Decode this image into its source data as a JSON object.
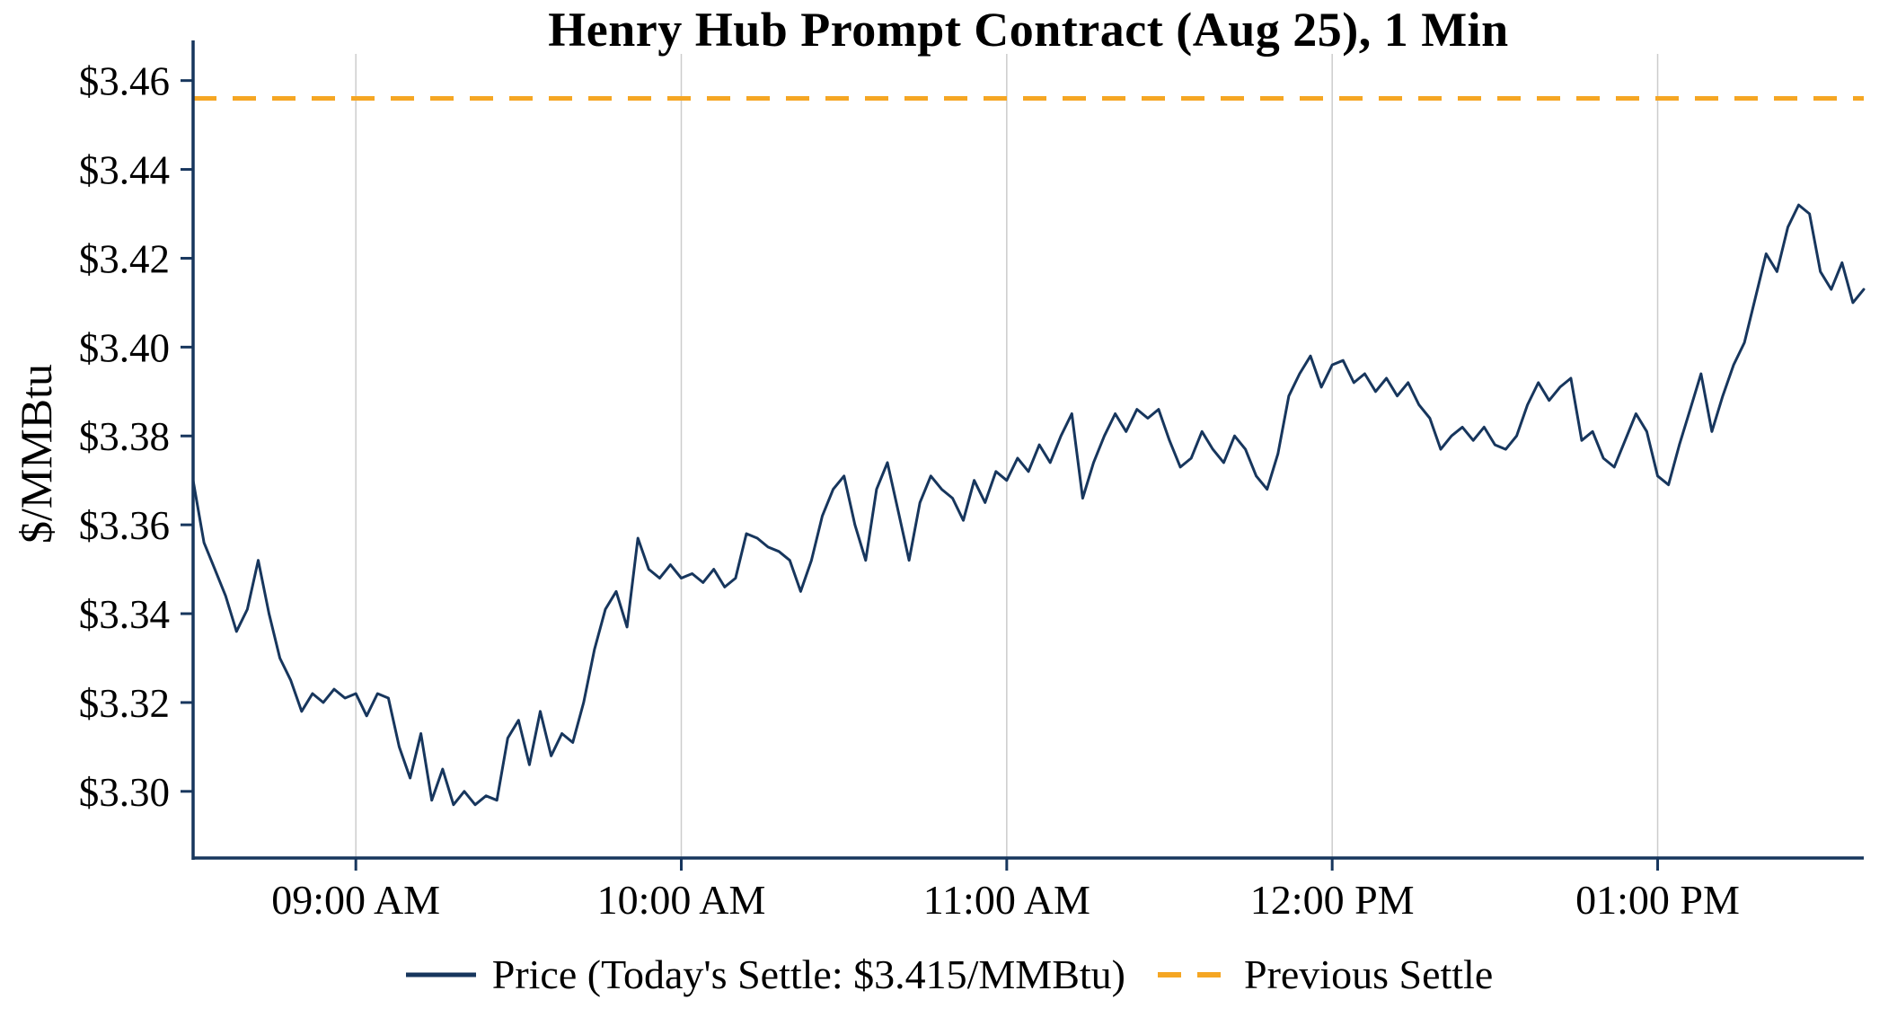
{
  "page": {
    "background": "#ffffff"
  },
  "chart_data": {
    "type": "line",
    "title": "Henry Hub Prompt Contract (Aug 25), 1 Min",
    "xlabel": "",
    "ylabel": "$/MMBtu",
    "ylim": [
      3.285,
      3.466
    ],
    "grid": "vertical-only",
    "legend_position": "bottom-center",
    "x_start_label": "08:30 AM",
    "x_interval_min": 2,
    "x_total_min": 308,
    "x_ticks": [
      {
        "minutes_from_start": 30,
        "label": "09:00 AM"
      },
      {
        "minutes_from_start": 90,
        "label": "10:00 AM"
      },
      {
        "minutes_from_start": 150,
        "label": "11:00 AM"
      },
      {
        "minutes_from_start": 210,
        "label": "12:00 PM"
      },
      {
        "minutes_from_start": 270,
        "label": "01:00 PM"
      }
    ],
    "y_ticks": [
      {
        "value": 3.3,
        "label": "$3.30"
      },
      {
        "value": 3.32,
        "label": "$3.32"
      },
      {
        "value": 3.34,
        "label": "$3.34"
      },
      {
        "value": 3.36,
        "label": "$3.36"
      },
      {
        "value": 3.38,
        "label": "$3.38"
      },
      {
        "value": 3.4,
        "label": "$3.40"
      },
      {
        "value": 3.42,
        "label": "$3.42"
      },
      {
        "value": 3.44,
        "label": "$3.44"
      },
      {
        "value": 3.46,
        "label": "$3.46"
      }
    ],
    "colors": {
      "price_line": "#17365d",
      "previous_settle_line": "#f5a623",
      "axis": "#17365d",
      "gridline": "#cccccc",
      "text": "#000000"
    },
    "todays_settle": 3.415,
    "series": [
      {
        "name": "Price (Today's Settle: $3.415/MMBtu)",
        "type": "line",
        "color": "#17365d",
        "values": [
          3.37,
          3.356,
          3.35,
          3.344,
          3.336,
          3.341,
          3.352,
          3.34,
          3.33,
          3.325,
          3.318,
          3.322,
          3.32,
          3.323,
          3.321,
          3.322,
          3.317,
          3.322,
          3.321,
          3.31,
          3.303,
          3.313,
          3.298,
          3.305,
          3.297,
          3.3,
          3.297,
          3.299,
          3.298,
          3.312,
          3.316,
          3.306,
          3.318,
          3.308,
          3.313,
          3.311,
          3.32,
          3.332,
          3.341,
          3.345,
          3.337,
          3.357,
          3.35,
          3.348,
          3.351,
          3.348,
          3.349,
          3.347,
          3.35,
          3.346,
          3.348,
          3.358,
          3.357,
          3.355,
          3.354,
          3.352,
          3.345,
          3.352,
          3.362,
          3.368,
          3.371,
          3.36,
          3.352,
          3.368,
          3.374,
          3.363,
          3.352,
          3.365,
          3.371,
          3.368,
          3.366,
          3.361,
          3.37,
          3.365,
          3.372,
          3.37,
          3.375,
          3.372,
          3.378,
          3.374,
          3.38,
          3.385,
          3.366,
          3.374,
          3.38,
          3.385,
          3.381,
          3.386,
          3.384,
          3.386,
          3.379,
          3.373,
          3.375,
          3.381,
          3.377,
          3.374,
          3.38,
          3.377,
          3.371,
          3.368,
          3.376,
          3.389,
          3.394,
          3.398,
          3.391,
          3.396,
          3.397,
          3.392,
          3.394,
          3.39,
          3.393,
          3.389,
          3.392,
          3.387,
          3.384,
          3.377,
          3.38,
          3.382,
          3.379,
          3.382,
          3.378,
          3.377,
          3.38,
          3.387,
          3.392,
          3.388,
          3.391,
          3.393,
          3.379,
          3.381,
          3.375,
          3.373,
          3.379,
          3.385,
          3.381,
          3.371,
          3.369,
          3.378,
          3.386,
          3.394,
          3.381,
          3.389,
          3.396,
          3.401,
          3.411,
          3.421,
          3.417,
          3.427,
          3.432,
          3.43,
          3.417,
          3.413,
          3.419,
          3.41,
          3.413
        ]
      },
      {
        "name": "Previous Settle",
        "type": "dashed-horizontal",
        "color": "#f5a623",
        "value": 3.456
      }
    ]
  }
}
